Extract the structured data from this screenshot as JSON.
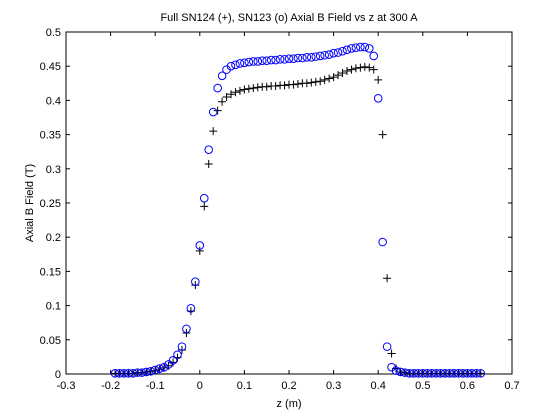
{
  "chart_data": {
    "type": "scatter",
    "title": "Full SN124 (+), SN123 (o) Axial B Field vs z at 300 A",
    "xlabel": "z (m)",
    "ylabel": "Axial B Field (T)",
    "xlim": [
      -0.3,
      0.7
    ],
    "ylim": [
      0,
      0.5
    ],
    "xticks": [
      -0.3,
      -0.2,
      -0.1,
      0,
      0.1,
      0.2,
      0.3,
      0.4,
      0.5,
      0.6,
      0.7
    ],
    "xtick_labels": [
      "-0.3",
      "-0.2",
      "-0.1",
      "0",
      "0.1",
      "0.2",
      "0.3",
      "0.4",
      "0.5",
      "0.6",
      "0.7"
    ],
    "yticks": [
      0,
      0.05,
      0.1,
      0.15,
      0.2,
      0.25,
      0.3,
      0.35,
      0.4,
      0.45,
      0.5
    ],
    "ytick_labels": [
      "0",
      "0.05",
      "0.1",
      "0.15",
      "0.2",
      "0.25",
      "0.3",
      "0.35",
      "0.4",
      "0.45",
      "0.5"
    ],
    "grid": false,
    "legend": "none",
    "series": [
      {
        "marker": "plus",
        "color": "#000000",
        "points": [
          [
            -0.19,
            0.001
          ],
          [
            -0.18,
            0.001
          ],
          [
            -0.17,
            0.001
          ],
          [
            -0.16,
            0.001
          ],
          [
            -0.15,
            0.001
          ],
          [
            -0.14,
            0.002
          ],
          [
            -0.13,
            0.002
          ],
          [
            -0.12,
            0.003
          ],
          [
            -0.11,
            0.004
          ],
          [
            -0.1,
            0.005
          ],
          [
            -0.09,
            0.007
          ],
          [
            -0.08,
            0.009
          ],
          [
            -0.07,
            0.012
          ],
          [
            -0.06,
            0.017
          ],
          [
            -0.05,
            0.024
          ],
          [
            -0.04,
            0.035
          ],
          [
            -0.03,
            0.06
          ],
          [
            -0.02,
            0.092
          ],
          [
            -0.01,
            0.13
          ],
          [
            0.0,
            0.18
          ],
          [
            0.01,
            0.245
          ],
          [
            0.02,
            0.307
          ],
          [
            0.03,
            0.355
          ],
          [
            0.04,
            0.385
          ],
          [
            0.05,
            0.398
          ],
          [
            0.06,
            0.405
          ],
          [
            0.07,
            0.409
          ],
          [
            0.08,
            0.412
          ],
          [
            0.09,
            0.414
          ],
          [
            0.1,
            0.416
          ],
          [
            0.11,
            0.417
          ],
          [
            0.12,
            0.418
          ],
          [
            0.13,
            0.419
          ],
          [
            0.14,
            0.42
          ],
          [
            0.15,
            0.42
          ],
          [
            0.16,
            0.421
          ],
          [
            0.17,
            0.421
          ],
          [
            0.18,
            0.422
          ],
          [
            0.19,
            0.422
          ],
          [
            0.2,
            0.423
          ],
          [
            0.21,
            0.423
          ],
          [
            0.22,
            0.424
          ],
          [
            0.23,
            0.425
          ],
          [
            0.24,
            0.425
          ],
          [
            0.25,
            0.426
          ],
          [
            0.26,
            0.427
          ],
          [
            0.27,
            0.428
          ],
          [
            0.28,
            0.43
          ],
          [
            0.29,
            0.432
          ],
          [
            0.3,
            0.434
          ],
          [
            0.31,
            0.437
          ],
          [
            0.32,
            0.44
          ],
          [
            0.33,
            0.443
          ],
          [
            0.34,
            0.445
          ],
          [
            0.35,
            0.447
          ],
          [
            0.36,
            0.448
          ],
          [
            0.37,
            0.449
          ],
          [
            0.38,
            0.448
          ],
          [
            0.39,
            0.445
          ],
          [
            0.4,
            0.43
          ],
          [
            0.41,
            0.35
          ],
          [
            0.42,
            0.14
          ],
          [
            0.43,
            0.03
          ],
          [
            0.44,
            0.008
          ],
          [
            0.45,
            0.003
          ],
          [
            0.46,
            0.002
          ],
          [
            0.47,
            0.001
          ],
          [
            0.48,
            0.001
          ],
          [
            0.49,
            0.001
          ],
          [
            0.5,
            0.001
          ],
          [
            0.51,
            0.001
          ],
          [
            0.52,
            0.001
          ],
          [
            0.53,
            0.001
          ],
          [
            0.54,
            0.001
          ],
          [
            0.55,
            0.001
          ],
          [
            0.56,
            0.001
          ],
          [
            0.57,
            0.001
          ],
          [
            0.58,
            0.001
          ],
          [
            0.59,
            0.001
          ],
          [
            0.6,
            0.001
          ],
          [
            0.61,
            0.001
          ],
          [
            0.62,
            0.001
          ],
          [
            0.63,
            0.001
          ]
        ]
      },
      {
        "marker": "circle",
        "color": "#0000ff",
        "points": [
          [
            -0.19,
            0.001
          ],
          [
            -0.18,
            0.001
          ],
          [
            -0.17,
            0.001
          ],
          [
            -0.16,
            0.001
          ],
          [
            -0.15,
            0.001
          ],
          [
            -0.14,
            0.002
          ],
          [
            -0.13,
            0.002
          ],
          [
            -0.12,
            0.003
          ],
          [
            -0.11,
            0.004
          ],
          [
            -0.1,
            0.006
          ],
          [
            -0.09,
            0.008
          ],
          [
            -0.08,
            0.01
          ],
          [
            -0.07,
            0.014
          ],
          [
            -0.06,
            0.02
          ],
          [
            -0.05,
            0.028
          ],
          [
            -0.04,
            0.04
          ],
          [
            -0.03,
            0.066
          ],
          [
            -0.02,
            0.096
          ],
          [
            -0.01,
            0.135
          ],
          [
            0.0,
            0.188
          ],
          [
            0.01,
            0.257
          ],
          [
            0.02,
            0.328
          ],
          [
            0.03,
            0.383
          ],
          [
            0.04,
            0.418
          ],
          [
            0.05,
            0.436
          ],
          [
            0.06,
            0.445
          ],
          [
            0.07,
            0.45
          ],
          [
            0.08,
            0.452
          ],
          [
            0.09,
            0.454
          ],
          [
            0.1,
            0.455
          ],
          [
            0.11,
            0.456
          ],
          [
            0.12,
            0.457
          ],
          [
            0.13,
            0.457
          ],
          [
            0.14,
            0.458
          ],
          [
            0.15,
            0.458
          ],
          [
            0.16,
            0.459
          ],
          [
            0.17,
            0.459
          ],
          [
            0.18,
            0.46
          ],
          [
            0.19,
            0.46
          ],
          [
            0.2,
            0.461
          ],
          [
            0.21,
            0.461
          ],
          [
            0.22,
            0.462
          ],
          [
            0.23,
            0.462
          ],
          [
            0.24,
            0.463
          ],
          [
            0.25,
            0.463
          ],
          [
            0.26,
            0.464
          ],
          [
            0.27,
            0.465
          ],
          [
            0.28,
            0.466
          ],
          [
            0.29,
            0.467
          ],
          [
            0.3,
            0.469
          ],
          [
            0.31,
            0.47
          ],
          [
            0.32,
            0.472
          ],
          [
            0.33,
            0.474
          ],
          [
            0.34,
            0.476
          ],
          [
            0.35,
            0.477
          ],
          [
            0.36,
            0.478
          ],
          [
            0.37,
            0.478
          ],
          [
            0.38,
            0.476
          ],
          [
            0.39,
            0.465
          ],
          [
            0.4,
            0.403
          ],
          [
            0.41,
            0.193
          ],
          [
            0.42,
            0.04
          ],
          [
            0.43,
            0.01
          ],
          [
            0.44,
            0.005
          ],
          [
            0.45,
            0.003
          ],
          [
            0.46,
            0.002
          ],
          [
            0.47,
            0.001
          ],
          [
            0.48,
            0.001
          ],
          [
            0.49,
            0.001
          ],
          [
            0.5,
            0.001
          ],
          [
            0.51,
            0.001
          ],
          [
            0.52,
            0.001
          ],
          [
            0.53,
            0.001
          ],
          [
            0.54,
            0.001
          ],
          [
            0.55,
            0.001
          ],
          [
            0.56,
            0.001
          ],
          [
            0.57,
            0.001
          ],
          [
            0.58,
            0.001
          ],
          [
            0.59,
            0.001
          ],
          [
            0.6,
            0.001
          ],
          [
            0.61,
            0.001
          ],
          [
            0.62,
            0.001
          ],
          [
            0.63,
            0.001
          ]
        ]
      }
    ]
  }
}
